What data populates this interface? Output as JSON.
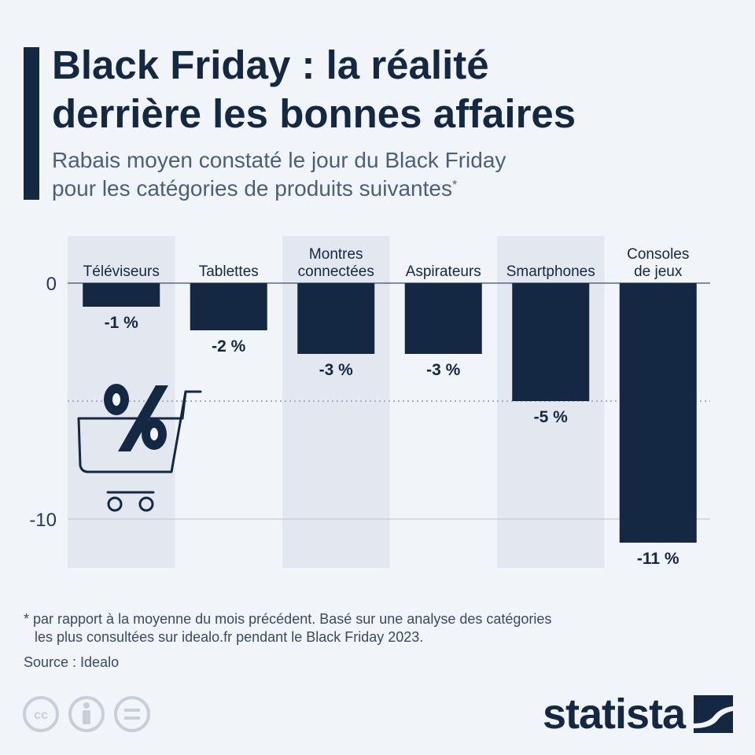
{
  "header": {
    "title_line1": "Black Friday : la réalité",
    "title_line2": "derrière les bonnes affaires",
    "subtitle_line1": "Rabais moyen constaté le jour du Black Friday",
    "subtitle_line2": "pour les catégories de produits suivantes",
    "subtitle_marker": "*"
  },
  "chart_data": {
    "type": "bar",
    "categories": [
      [
        "Téléviseurs"
      ],
      [
        "Tablettes"
      ],
      [
        "Montres",
        "connectées"
      ],
      [
        "Aspirateurs"
      ],
      [
        "Smartphones"
      ],
      [
        "Consoles",
        "de jeux"
      ]
    ],
    "values": [
      -1,
      -2,
      -3,
      -3,
      -5,
      -11
    ],
    "value_labels": [
      "-1 %",
      "-2 %",
      "-3 %",
      "-3 %",
      "-5 %",
      "-11 %"
    ],
    "y_ticks": [
      0,
      -10
    ],
    "y_tick_labels": [
      "0",
      "-10"
    ],
    "reference_line": -5,
    "ylim": [
      -12,
      0
    ],
    "bar_color": "#142743",
    "stripe_color": "#e3e8f0",
    "grid": true
  },
  "footer": {
    "note_line1": "* par rapport à la moyenne du mois précédent. Basé sur une analyse des catégories",
    "note_line2": "les plus consultées sur idealo.fr pendant le Black Friday 2023.",
    "source": "Source : Idealo",
    "brand": "statista",
    "license_icons": [
      "cc-icon",
      "attribution-icon",
      "no-derivatives-icon"
    ]
  }
}
